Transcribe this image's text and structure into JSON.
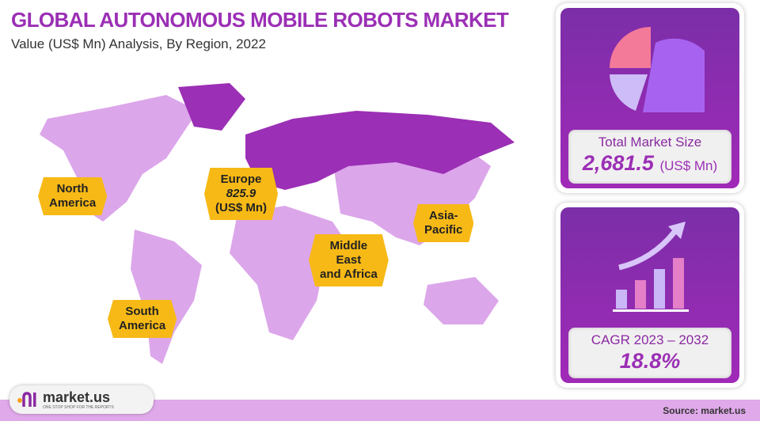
{
  "header": {
    "title": "GLOBAL AUTONOMOUS MOBILE ROBOTS MARKET",
    "subtitle": "Value (US$ Mn) Analysis, By Region, 2022"
  },
  "chart_data": {
    "type": "map",
    "title": "GLOBAL AUTONOMOUS MOBILE ROBOTS MARKET",
    "subtitle": "Value (US$ Mn) Analysis, By Region, 2022",
    "regions": [
      {
        "name": "North America",
        "value": null
      },
      {
        "name": "Europe",
        "value": 825.9,
        "unit": "(US$ Mn)",
        "highlighted": true
      },
      {
        "name": "Asia-Pacific",
        "value": null
      },
      {
        "name": "Middle East and Africa",
        "value": null
      },
      {
        "name": "South America",
        "value": null
      }
    ],
    "colors": {
      "highlight": "#9b2fb5",
      "base": "#dca6ea",
      "label_bg": "#f7b916"
    }
  },
  "labels": {
    "na1": "North",
    "na2": "America",
    "eu1": "Europe",
    "eu2": "825.9",
    "eu3": "(US$ Mn)",
    "ap1": "Asia-",
    "ap2": "Pacific",
    "me1": "Middle",
    "me2": "East",
    "me3": "and Africa",
    "sa1": "South",
    "sa2": "America"
  },
  "market_size": {
    "label": "Total Market Size",
    "value": "2,681.5",
    "unit": "(US$ Mn)",
    "icon": "pie-chart-icon"
  },
  "cagr": {
    "label": "CAGR 2023 – 2032",
    "value": "18.8%",
    "icon": "growth-bar-chart-icon"
  },
  "footer": {
    "logo": "market.us",
    "tagline": "ONE STOP SHOP FOR THE REPORTS",
    "source": "Source: market.us"
  }
}
